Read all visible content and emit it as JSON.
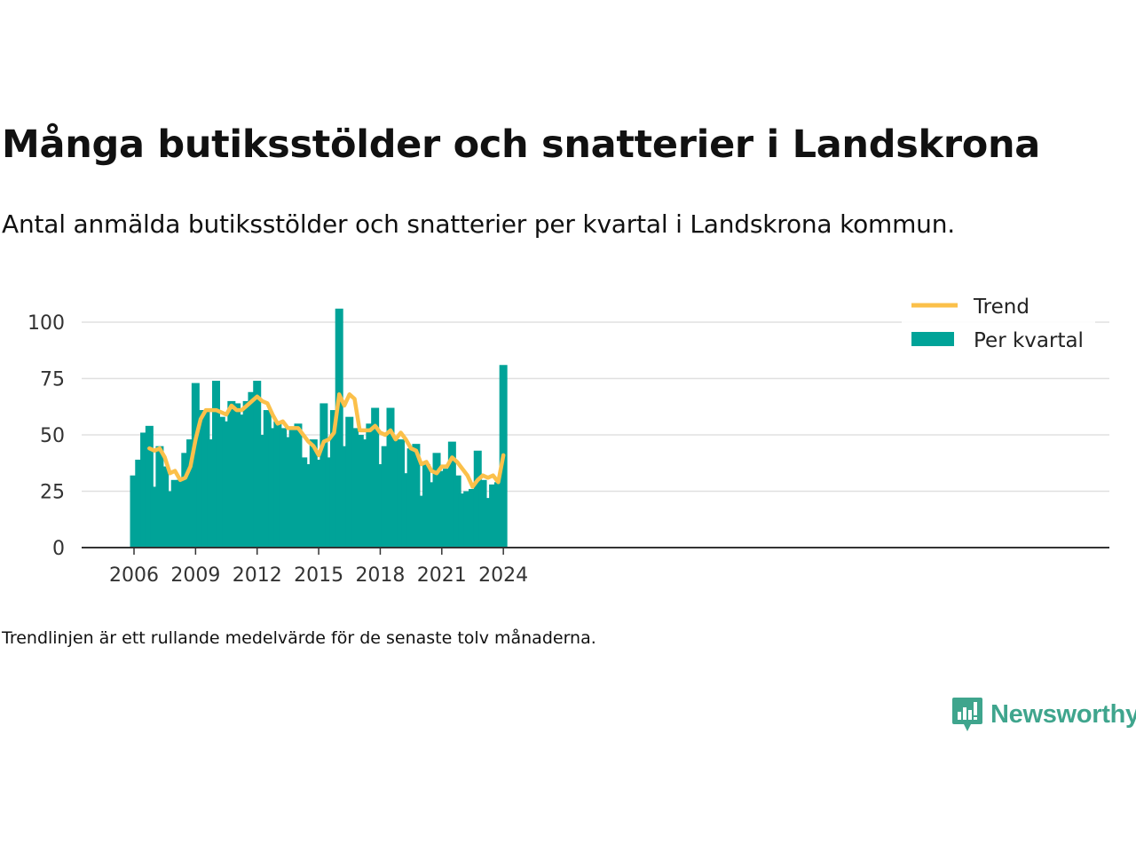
{
  "title": "Många butiksstölder och snatterier i Landskrona",
  "subtitle": "Antal anmälda butiksstölder och snatterier per kvartal i Landskrona kommun.",
  "footnote": "Trendlinjen är ett rullande medelvärde för de senaste tolv månaderna.",
  "brand": {
    "name": "Newsworthy",
    "icon": "newsworthy-logo-icon",
    "color": "#3fa58d"
  },
  "chart_data": {
    "type": "bar",
    "title": "Många butiksstölder och snatterier i Landskrona",
    "xlabel": "",
    "ylabel": "",
    "ylim": [
      0,
      100
    ],
    "yticks": [
      0,
      25,
      50,
      75,
      100
    ],
    "xticks": [
      "2006",
      "2009",
      "2012",
      "2015",
      "2018",
      "2021",
      "2024"
    ],
    "grid": true,
    "legend_position": "top-right",
    "colors": {
      "bars": "#00a398",
      "trend": "#fbc04a",
      "grid": "#e0e0e0",
      "axis": "#333333"
    },
    "x": [
      "2006-Q1",
      "2006-Q2",
      "2006-Q3",
      "2006-Q4",
      "2007-Q1",
      "2007-Q2",
      "2007-Q3",
      "2007-Q4",
      "2008-Q1",
      "2008-Q2",
      "2008-Q3",
      "2008-Q4",
      "2009-Q1",
      "2009-Q2",
      "2009-Q3",
      "2009-Q4",
      "2010-Q1",
      "2010-Q2",
      "2010-Q3",
      "2010-Q4",
      "2011-Q1",
      "2011-Q2",
      "2011-Q3",
      "2011-Q4",
      "2012-Q1",
      "2012-Q2",
      "2012-Q3",
      "2012-Q4",
      "2013-Q1",
      "2013-Q2",
      "2013-Q3",
      "2013-Q4",
      "2014-Q1",
      "2014-Q2",
      "2014-Q3",
      "2014-Q4",
      "2015-Q1",
      "2015-Q2",
      "2015-Q3",
      "2015-Q4",
      "2016-Q1",
      "2016-Q2",
      "2016-Q3",
      "2016-Q4",
      "2017-Q1",
      "2017-Q2",
      "2017-Q3",
      "2017-Q4",
      "2018-Q1",
      "2018-Q2",
      "2018-Q3",
      "2018-Q4",
      "2019-Q1",
      "2019-Q2",
      "2019-Q3",
      "2019-Q4",
      "2020-Q1",
      "2020-Q2",
      "2020-Q3",
      "2020-Q4",
      "2021-Q1",
      "2021-Q2",
      "2021-Q3",
      "2021-Q4",
      "2022-Q1",
      "2022-Q2",
      "2022-Q3",
      "2022-Q4",
      "2023-Q1",
      "2023-Q2",
      "2023-Q3",
      "2023-Q4",
      "2024-Q1"
    ],
    "series": [
      {
        "name": "Per kvartal",
        "type": "bar",
        "values": [
          32,
          39,
          51,
          54,
          27,
          45,
          36,
          25,
          30,
          30,
          42,
          48,
          73,
          61,
          61,
          48,
          74,
          58,
          56,
          65,
          64,
          59,
          65,
          69,
          74,
          50,
          61,
          53,
          56,
          53,
          49,
          53,
          55,
          40,
          37,
          48,
          39,
          64,
          40,
          61,
          106,
          45,
          58,
          53,
          50,
          48,
          55,
          62,
          37,
          45,
          62,
          48,
          48,
          33,
          44,
          46,
          23,
          37,
          29,
          42,
          34,
          35,
          47,
          32,
          24,
          25,
          26,
          43,
          30,
          22,
          28,
          29,
          81
        ]
      },
      {
        "name": "Trend",
        "type": "line",
        "values": [
          null,
          null,
          null,
          44,
          43,
          44,
          40,
          33,
          34,
          30,
          31,
          36,
          48,
          57,
          61,
          61,
          61,
          60,
          59,
          63,
          61,
          61,
          63,
          65,
          67,
          65,
          64,
          59,
          55,
          56,
          53,
          53,
          53,
          50,
          47,
          45,
          41,
          47,
          48,
          51,
          68,
          63,
          68,
          66,
          52,
          52,
          52,
          54,
          51,
          50,
          52,
          48,
          51,
          48,
          44,
          43,
          37,
          38,
          34,
          33,
          36,
          36,
          40,
          38,
          35,
          32,
          27,
          30,
          32,
          31,
          32,
          29,
          41
        ]
      }
    ]
  }
}
